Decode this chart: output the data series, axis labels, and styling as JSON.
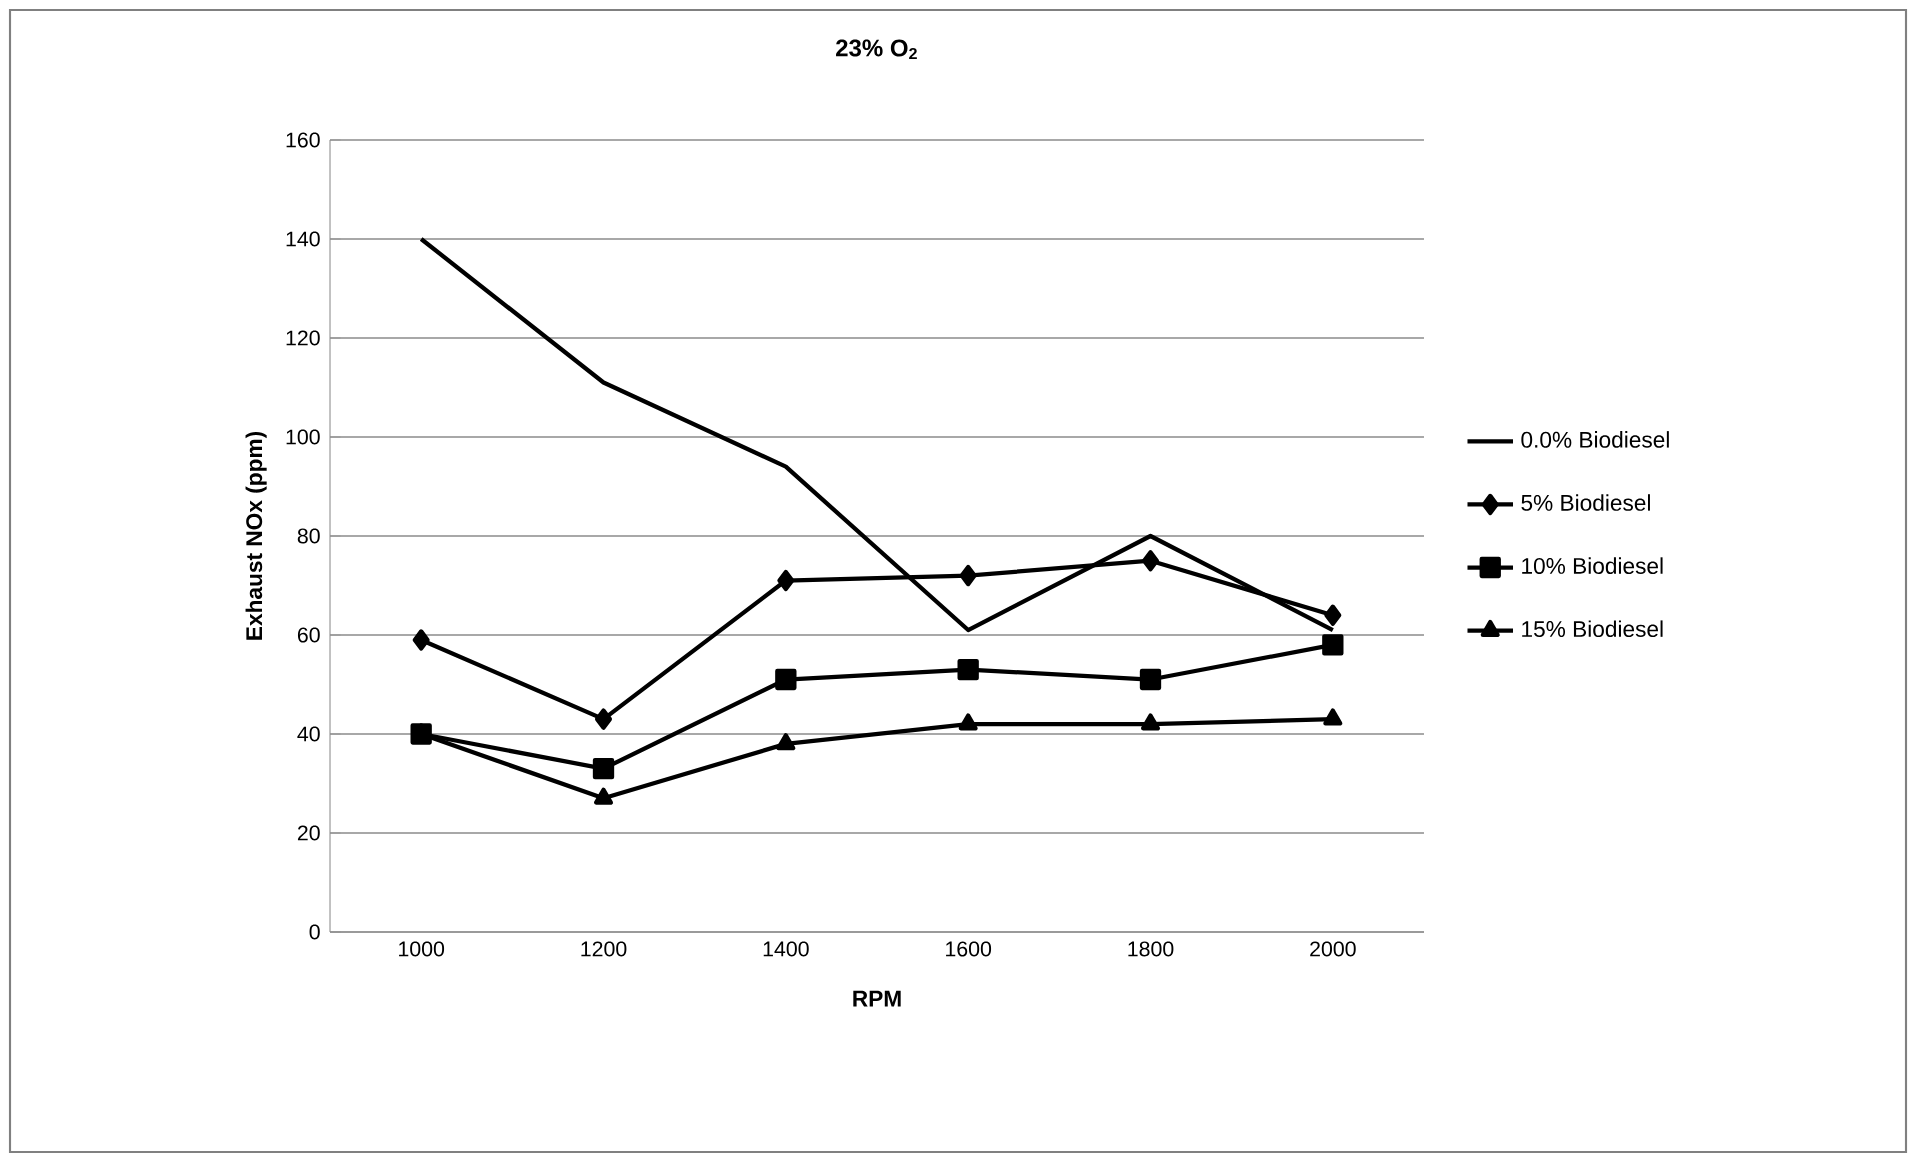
{
  "chart_data": {
    "type": "line",
    "title": "23% O$_{2}$",
    "xlabel": "RPM",
    "ylabel": "Exhaust NOx (ppm)",
    "categories": [
      "1000",
      "1200",
      "1400",
      "1600",
      "1800",
      "2000"
    ],
    "series": [
      {
        "name": "0.0% Biodiesel",
        "color": "#000000",
        "marker": "none",
        "values": [
          140,
          111,
          94,
          61,
          80,
          61
        ]
      },
      {
        "name": "5% Biodiesel",
        "color": "#000000",
        "marker": "diamond",
        "values": [
          59,
          43,
          71,
          72,
          75,
          64
        ]
      },
      {
        "name": "10% Biodiesel",
        "color": "#000000",
        "marker": "square",
        "values": [
          40,
          33,
          51,
          53,
          51,
          58
        ]
      },
      {
        "name": "15% Biodiesel",
        "color": "#000000",
        "marker": "triangle",
        "values": [
          40,
          27,
          38,
          42,
          42,
          43
        ]
      }
    ],
    "ylim": [
      0,
      160
    ],
    "yticks": [
      0,
      20,
      40,
      60,
      80,
      100,
      120,
      140,
      160
    ],
    "grid": "y",
    "legend": "right",
    "line_style": "solid"
  }
}
